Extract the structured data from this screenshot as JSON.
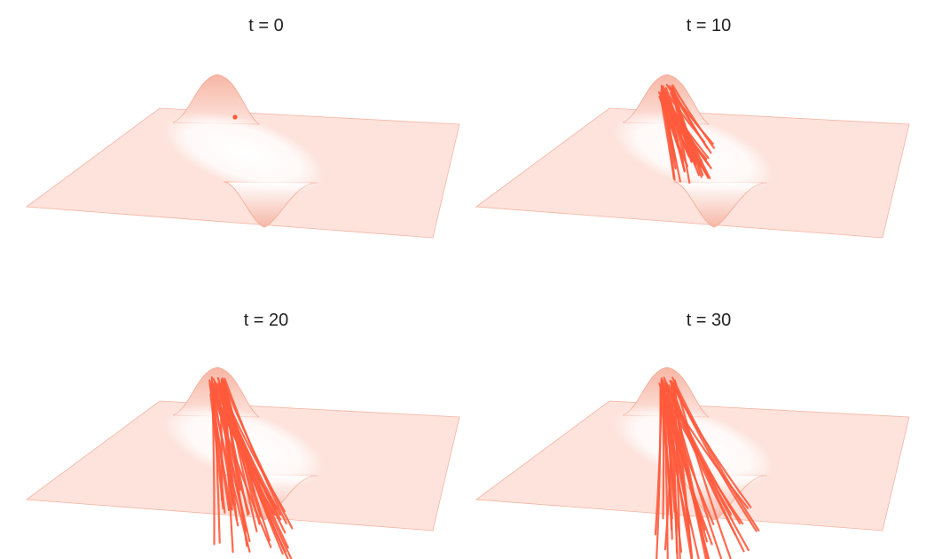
{
  "panels": [
    {
      "title": "t = 0",
      "time": 0,
      "trajectories": 1
    },
    {
      "title": "t = 10",
      "time": 10,
      "trajectories": 40
    },
    {
      "title": "t = 20",
      "time": 20,
      "trajectories": 40
    },
    {
      "title": "t = 30",
      "time": 30,
      "trajectories": 40
    }
  ],
  "colors": {
    "surface_fill": "#fde3dc",
    "surface_edge": "#f4b4a3",
    "trajectory": "#ff5a3c",
    "highlight": "#ffffff"
  }
}
